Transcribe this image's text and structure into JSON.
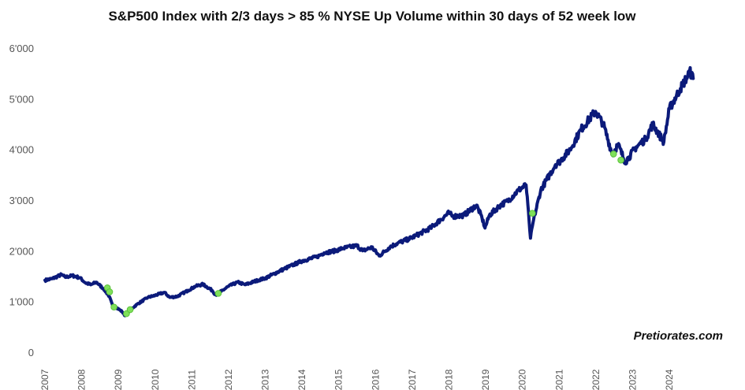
{
  "chart_data": {
    "type": "line",
    "title": "S&P500 Index with 2/3 days > 85 % NYSE Up Volume within 30 days of 52 week low",
    "source": "Pretiorates.com",
    "xlabel": "",
    "ylabel": "",
    "ylim": [
      0,
      6000
    ],
    "xlim": [
      2007,
      2024.75
    ],
    "grid": false,
    "legend": "none",
    "line_color": "#0b1a7a",
    "marker_color": "#7fe05a",
    "y_ticks": [
      {
        "value": 0,
        "label": "0"
      },
      {
        "value": 1000,
        "label": "1'000"
      },
      {
        "value": 2000,
        "label": "2'000"
      },
      {
        "value": 3000,
        "label": "3'000"
      },
      {
        "value": 4000,
        "label": "4'000"
      },
      {
        "value": 5000,
        "label": "5'000"
      },
      {
        "value": 6000,
        "label": "6'000"
      }
    ],
    "x_ticks": [
      {
        "value": 2007,
        "label": "2007"
      },
      {
        "value": 2008,
        "label": "2008"
      },
      {
        "value": 2009,
        "label": "2009"
      },
      {
        "value": 2010,
        "label": "2010"
      },
      {
        "value": 2011,
        "label": "2011"
      },
      {
        "value": 2012,
        "label": "2012"
      },
      {
        "value": 2013,
        "label": "2013"
      },
      {
        "value": 2014,
        "label": "2014"
      },
      {
        "value": 2015,
        "label": "2015"
      },
      {
        "value": 2016,
        "label": "2016"
      },
      {
        "value": 2017,
        "label": "2017"
      },
      {
        "value": 2018,
        "label": "2018"
      },
      {
        "value": 2019,
        "label": "2019"
      },
      {
        "value": 2020,
        "label": "2020"
      },
      {
        "value": 2021,
        "label": "2021"
      },
      {
        "value": 2022,
        "label": "2022"
      },
      {
        "value": 2023,
        "label": "2023"
      },
      {
        "value": 2024,
        "label": "2024"
      }
    ],
    "series": [
      {
        "x": [
          2007.0,
          2007.2,
          2007.45,
          2007.55,
          2007.75,
          2007.95,
          2008.1,
          2008.25,
          2008.4,
          2008.6,
          2008.75,
          2008.85,
          2008.95,
          2009.1,
          2009.18,
          2009.3,
          2009.5,
          2009.8,
          2010.0,
          2010.25,
          2010.4,
          2010.6,
          2010.9,
          2011.1,
          2011.3,
          2011.55,
          2011.65,
          2011.8,
          2012.0,
          2012.25,
          2012.45,
          2012.8,
          2013.0,
          2013.5,
          2014.0,
          2014.4,
          2014.6,
          2014.9,
          2015.1,
          2015.5,
          2015.65,
          2015.9,
          2016.1,
          2016.4,
          2016.6,
          2016.9,
          2017.1,
          2017.5,
          2018.0,
          2018.1,
          2018.4,
          2018.75,
          2018.9,
          2018.98,
          2019.1,
          2019.4,
          2019.6,
          2019.9,
          2020.1,
          2020.18,
          2020.22,
          2020.3,
          2020.5,
          2020.9,
          2021.0,
          2021.3,
          2021.6,
          2021.99,
          2022.2,
          2022.45,
          2022.6,
          2022.8,
          2022.9,
          2023.1,
          2023.35,
          2023.55,
          2023.8,
          2023.85,
          2024.0,
          2024.3,
          2024.5,
          2024.55,
          2024.65
        ],
        "values": [
          1420,
          1450,
          1530,
          1480,
          1510,
          1470,
          1370,
          1330,
          1380,
          1250,
          1100,
          900,
          880,
          800,
          720,
          820,
          940,
          1080,
          1120,
          1180,
          1080,
          1100,
          1220,
          1300,
          1340,
          1220,
          1130,
          1200,
          1300,
          1380,
          1330,
          1420,
          1460,
          1640,
          1800,
          1880,
          1960,
          2000,
          2050,
          2100,
          2000,
          2070,
          1900,
          2080,
          2150,
          2230,
          2300,
          2450,
          2750,
          2680,
          2700,
          2900,
          2650,
          2450,
          2700,
          2900,
          2980,
          3200,
          3300,
          2600,
          2250,
          2600,
          3200,
          3700,
          3750,
          4000,
          4400,
          4750,
          4500,
          3900,
          4100,
          3750,
          3850,
          4050,
          4200,
          4500,
          4200,
          4150,
          4800,
          5200,
          5450,
          5550,
          5400
        ]
      }
    ],
    "signals": [
      {
        "x": 2008.7,
        "value": 1270
      },
      {
        "x": 2008.76,
        "value": 1190
      },
      {
        "x": 2008.88,
        "value": 890
      },
      {
        "x": 2009.22,
        "value": 760
      },
      {
        "x": 2009.32,
        "value": 840
      },
      {
        "x": 2011.72,
        "value": 1160
      },
      {
        "x": 2020.27,
        "value": 2740
      },
      {
        "x": 2022.48,
        "value": 3910
      },
      {
        "x": 2022.68,
        "value": 3790
      }
    ]
  }
}
